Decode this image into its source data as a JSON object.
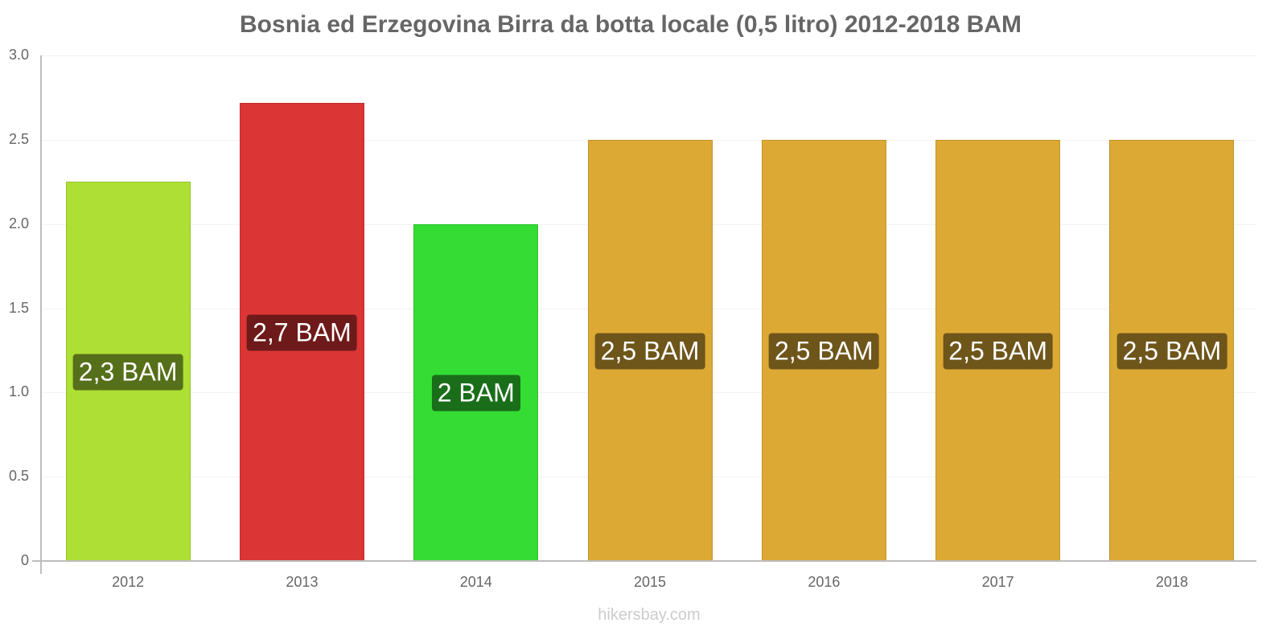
{
  "chart_data": {
    "type": "bar",
    "title": "Bosnia ed Erzegovina Birra da botta locale (0,5 litro) 2012-2018 BAM",
    "xlabel": "",
    "ylabel": "",
    "ylim": [
      0,
      3.0
    ],
    "yticks": [
      "0",
      "0.5",
      "1.0",
      "1.5",
      "2.0",
      "2.5",
      "3.0"
    ],
    "grid": true,
    "legend": null,
    "categories": [
      "2012",
      "2013",
      "2014",
      "2015",
      "2016",
      "2017",
      "2018"
    ],
    "values": [
      2.25,
      2.72,
      2.0,
      2.5,
      2.5,
      2.5,
      2.5
    ],
    "data_labels": [
      "2,3 BAM",
      "2,7 BAM",
      "2 BAM",
      "2,5 BAM",
      "2,5 BAM",
      "2,5 BAM",
      "2,5 BAM"
    ],
    "bar_colors": [
      "#addf34",
      "#dc3535",
      "#34dc34",
      "#dcaa34",
      "#dcaa34",
      "#dcaa34",
      "#dcaa34"
    ],
    "label_colors": [
      "#566f1a",
      "#6e1a1a",
      "#1a6e1a",
      "#6e551a",
      "#6e551a",
      "#6e551a",
      "#6e551a"
    ]
  },
  "watermark": "hikersbay.com"
}
